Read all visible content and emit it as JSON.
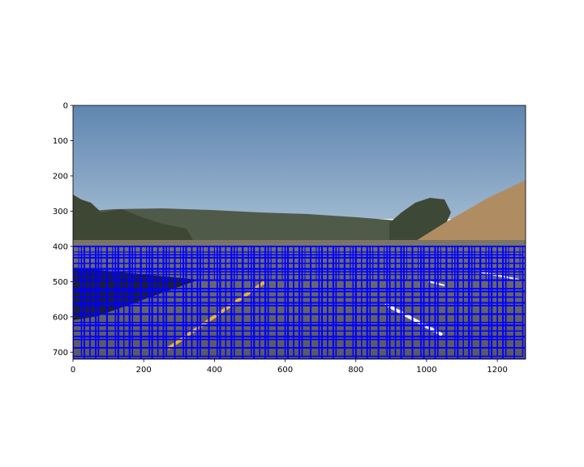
{
  "chart_data": {
    "type": "image",
    "title": "",
    "xlabel": "",
    "ylabel": "",
    "xlim": [
      0,
      1280
    ],
    "ylim": [
      720,
      0
    ],
    "xticks": [
      0,
      200,
      400,
      600,
      800,
      1000,
      1200
    ],
    "yticks": [
      0,
      100,
      200,
      300,
      400,
      500,
      600,
      700
    ],
    "grid": false,
    "legend": "none",
    "image_content": "road scene with hills under blue sky and lane markings",
    "overlay": {
      "shape": "rectangle",
      "color": "#0000ff",
      "region_x": [
        0,
        1280
      ],
      "region_y": [
        400,
        720
      ],
      "window_sizes": [
        32,
        48,
        64
      ]
    },
    "colors": {
      "sky": "#6f93b8",
      "hills": "#4a5640",
      "road": "#6b6a72",
      "yellow_line": "#e9b630",
      "white_line": "#f4f4f4",
      "box": "#0000ff"
    }
  }
}
